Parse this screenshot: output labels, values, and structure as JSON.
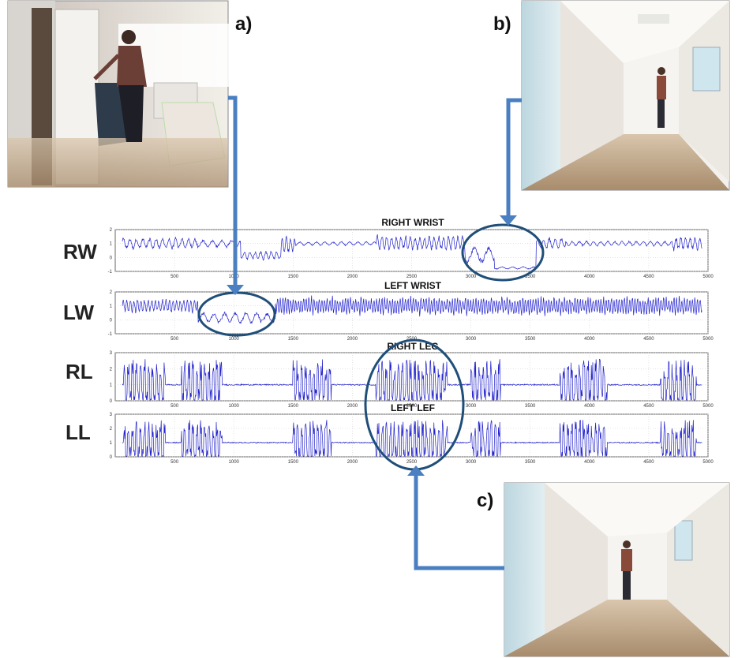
{
  "figure": {
    "panel_labels": [
      "a)",
      "b)",
      "c)"
    ],
    "row_labels": [
      "RW",
      "LW",
      "RL",
      "LL"
    ]
  },
  "colors": {
    "signal": "#2222cc",
    "annotation": "#4a7fc1",
    "ellipse": "#1f4e79",
    "grid": "#d0d0d0",
    "axis": "#404040"
  },
  "chart_data": [
    {
      "type": "line",
      "title": "RIGHT WRIST",
      "row_label": "RW",
      "xlim": [
        0,
        5000
      ],
      "ylim": [
        -1,
        2
      ],
      "xticks": [
        500,
        1000,
        1500,
        2000,
        2500,
        3000,
        3500,
        4000,
        4500,
        5000
      ],
      "yticks": [
        -1,
        0,
        1,
        2
      ],
      "grid": true,
      "series": [
        {
          "values_note": "",
          "segments": [
            {
              "x0": 0,
              "x1": 700,
              "base": 1.0,
              "amp": 0.35,
              "period": 55
            },
            {
              "x0": 700,
              "x1": 1060,
              "base": 1.0,
              "amp": 0.22,
              "period": 80
            },
            {
              "x0": 1060,
              "x1": 1400,
              "base": 0.15,
              "amp": 0.25,
              "period": 45
            },
            {
              "x0": 1400,
              "x1": 1520,
              "base": 0.9,
              "amp": 0.5,
              "period": 35
            },
            {
              "x0": 1520,
              "x1": 2200,
              "base": 1.0,
              "amp": 0.12,
              "period": 70
            },
            {
              "x0": 2200,
              "x1": 2950,
              "base": 1.05,
              "amp": 0.45,
              "period": 40
            },
            {
              "x0": 2950,
              "x1": 3200,
              "base": 0.2,
              "amp": 0.55,
              "period": 120
            },
            {
              "x0": 3200,
              "x1": 3550,
              "base": -0.75,
              "amp": 0.08,
              "period": 90
            },
            {
              "x0": 3550,
              "x1": 3800,
              "base": 1.0,
              "amp": 0.35,
              "period": 50
            },
            {
              "x0": 3800,
              "x1": 4700,
              "base": 1.0,
              "amp": 0.15,
              "period": 60
            },
            {
              "x0": 4700,
              "x1": 4950,
              "base": 1.0,
              "amp": 0.4,
              "period": 40
            }
          ]
        }
      ]
    },
    {
      "type": "line",
      "title": "LEFT WRIST",
      "row_label": "LW",
      "xlim": [
        0,
        5000
      ],
      "ylim": [
        -1,
        2
      ],
      "xticks": [
        500,
        1000,
        1500,
        2000,
        2500,
        3000,
        3500,
        4000,
        4500,
        5000
      ],
      "yticks": [
        -1,
        0,
        1,
        2
      ],
      "grid": true,
      "series": [
        {
          "values_note": "",
          "segments": [
            {
              "x0": 0,
              "x1": 700,
              "base": 1.0,
              "amp": 0.4,
              "period": 30
            },
            {
              "x0": 700,
              "x1": 1350,
              "base": 0.15,
              "amp": 0.35,
              "period": 90
            },
            {
              "x0": 1350,
              "x1": 4950,
              "base": 1.0,
              "amp": 0.55,
              "period": 22
            }
          ]
        }
      ]
    },
    {
      "type": "line",
      "title": "RIGHT LEG",
      "row_label": "RL",
      "xlim": [
        0,
        5000
      ],
      "ylim": [
        0,
        3
      ],
      "xticks": [
        500,
        1000,
        1500,
        2000,
        2500,
        3000,
        3500,
        4000,
        4500,
        5000
      ],
      "yticks": [
        0,
        1,
        2,
        3
      ],
      "grid": true,
      "bursts": [
        [
          70,
          420
        ],
        [
          560,
          900
        ],
        [
          1500,
          1820
        ],
        [
          2200,
          2800
        ],
        [
          3000,
          3250
        ],
        [
          3750,
          4150
        ],
        [
          4600,
          4900
        ]
      ],
      "series": [
        {
          "values_note": "",
          "segments": []
        }
      ]
    },
    {
      "type": "line",
      "title": "LEFT LEF",
      "row_label": "LL",
      "xlim": [
        0,
        5000
      ],
      "ylim": [
        0,
        3
      ],
      "xticks": [
        500,
        1000,
        1500,
        2000,
        2500,
        3000,
        3500,
        4000,
        4500,
        5000
      ],
      "yticks": [
        0,
        1,
        2,
        3
      ],
      "grid": true,
      "bursts": [
        [
          70,
          420
        ],
        [
          560,
          900
        ],
        [
          1500,
          1820
        ],
        [
          2200,
          2800
        ],
        [
          3000,
          3250
        ],
        [
          3750,
          4150
        ],
        [
          4600,
          4900
        ]
      ],
      "series": [
        {
          "values_note": "",
          "segments": []
        }
      ]
    }
  ]
}
